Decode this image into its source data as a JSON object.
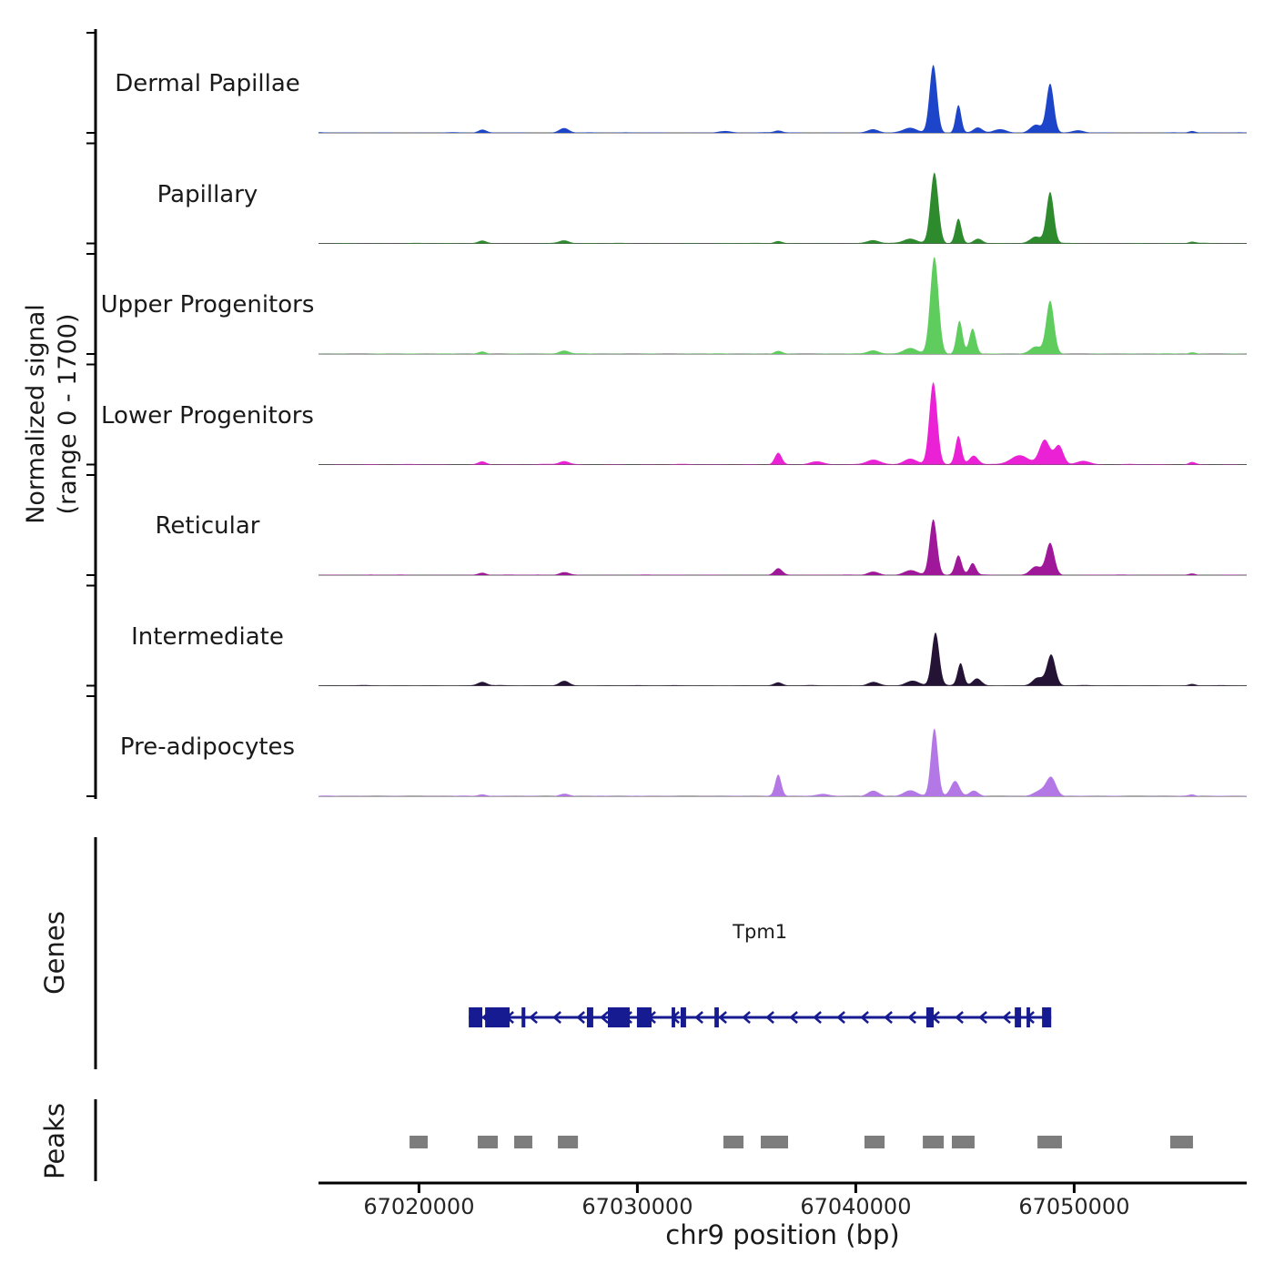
{
  "chart_data": {
    "type": "area",
    "title": "",
    "xlabel": "chr9 position (bp)",
    "ylabel": "Normalized signal (range 0 - 1700)",
    "ylabel_lines": [
      "Normalized signal",
      "(range 0 - 1700)"
    ],
    "signal_range": [
      0,
      1700
    ],
    "x_domain": [
      67015400,
      67057900
    ],
    "x_ticks": [
      67020000,
      67030000,
      67040000,
      67050000
    ],
    "x_tick_labels": [
      "67020000",
      "67030000",
      "67040000",
      "67050000"
    ],
    "grid": false,
    "tracks": [
      {
        "label": "Dermal Papillae",
        "color": "#1c45c9",
        "peaks": [
          [
            67022900,
            180,
            50
          ],
          [
            67026650,
            220,
            80
          ],
          [
            67034000,
            300,
            25
          ],
          [
            67036450,
            180,
            35
          ],
          [
            67040800,
            250,
            60
          ],
          [
            67042500,
            300,
            80
          ],
          [
            67043550,
            170,
            1150
          ],
          [
            67044700,
            130,
            470
          ],
          [
            67045600,
            200,
            90
          ],
          [
            67046600,
            300,
            60
          ],
          [
            67048250,
            250,
            130
          ],
          [
            67048900,
            170,
            830
          ],
          [
            67050200,
            250,
            40
          ],
          [
            67055400,
            150,
            30
          ]
        ]
      },
      {
        "label": "Papillary",
        "color": "#2d8a2d",
        "peaks": [
          [
            67022900,
            180,
            40
          ],
          [
            67026650,
            220,
            50
          ],
          [
            67036450,
            180,
            40
          ],
          [
            67040800,
            250,
            50
          ],
          [
            67042500,
            300,
            80
          ],
          [
            67043600,
            180,
            1200
          ],
          [
            67044700,
            140,
            420
          ],
          [
            67045600,
            200,
            80
          ],
          [
            67048250,
            250,
            110
          ],
          [
            67048900,
            170,
            870
          ],
          [
            67055400,
            150,
            25
          ]
        ]
      },
      {
        "label": "Upper Progenitors",
        "color": "#5ecd5e",
        "peaks": [
          [
            67022900,
            180,
            40
          ],
          [
            67026650,
            220,
            55
          ],
          [
            67036450,
            180,
            50
          ],
          [
            67040800,
            250,
            60
          ],
          [
            67042500,
            300,
            100
          ],
          [
            67043600,
            190,
            1650
          ],
          [
            67044750,
            140,
            560
          ],
          [
            67045350,
            150,
            430
          ],
          [
            67048250,
            250,
            120
          ],
          [
            67048900,
            180,
            900
          ],
          [
            67055400,
            150,
            25
          ]
        ]
      },
      {
        "label": "Lower Progenitors",
        "color": "#ea21d5",
        "peaks": [
          [
            67022900,
            180,
            50
          ],
          [
            67026650,
            220,
            55
          ],
          [
            67036450,
            160,
            200
          ],
          [
            67038200,
            300,
            45
          ],
          [
            67040800,
            300,
            80
          ],
          [
            67042500,
            300,
            100
          ],
          [
            67043550,
            180,
            1400
          ],
          [
            67044700,
            140,
            480
          ],
          [
            67045400,
            200,
            150
          ],
          [
            67047500,
            400,
            150
          ],
          [
            67048650,
            240,
            420
          ],
          [
            67049300,
            200,
            320
          ],
          [
            67050400,
            300,
            60
          ],
          [
            67055400,
            150,
            40
          ]
        ]
      },
      {
        "label": "Reticular",
        "color": "#a0189a",
        "peaks": [
          [
            67022900,
            180,
            40
          ],
          [
            67026650,
            220,
            50
          ],
          [
            67036450,
            180,
            110
          ],
          [
            67040800,
            250,
            60
          ],
          [
            67042500,
            300,
            80
          ],
          [
            67043550,
            170,
            950
          ],
          [
            67044700,
            150,
            330
          ],
          [
            67045350,
            150,
            200
          ],
          [
            67048250,
            250,
            150
          ],
          [
            67048900,
            190,
            540
          ],
          [
            67055400,
            150,
            25
          ]
        ]
      },
      {
        "label": "Intermediate",
        "color": "#251336",
        "peaks": [
          [
            67022900,
            200,
            60
          ],
          [
            67026650,
            220,
            80
          ],
          [
            67036450,
            180,
            50
          ],
          [
            67040800,
            250,
            60
          ],
          [
            67042600,
            300,
            80
          ],
          [
            67043650,
            170,
            900
          ],
          [
            67044800,
            140,
            380
          ],
          [
            67045550,
            200,
            120
          ],
          [
            67048350,
            250,
            140
          ],
          [
            67048950,
            190,
            520
          ],
          [
            67055400,
            150,
            25
          ]
        ]
      },
      {
        "label": "Pre-adipocytes",
        "color": "#b478e6",
        "peaks": [
          [
            67022900,
            180,
            30
          ],
          [
            67026650,
            220,
            40
          ],
          [
            67036450,
            140,
            360
          ],
          [
            67038500,
            300,
            40
          ],
          [
            67040800,
            250,
            90
          ],
          [
            67042500,
            300,
            90
          ],
          [
            67043600,
            160,
            1150
          ],
          [
            67044550,
            200,
            260
          ],
          [
            67045400,
            200,
            90
          ],
          [
            67048450,
            300,
            90
          ],
          [
            67048950,
            220,
            300
          ],
          [
            67055400,
            150,
            25
          ]
        ]
      }
    ],
    "gene_track": {
      "label": "Genes",
      "color": "#161b92",
      "gene": {
        "name": "Tpm1",
        "strand": "-",
        "start": 67022280,
        "end": 67048950,
        "exons": [
          [
            67022280,
            67022900
          ],
          [
            67023030,
            67024150
          ],
          [
            67024700,
            67024870
          ],
          [
            67027690,
            67027980
          ],
          [
            67028650,
            67029650
          ],
          [
            67029980,
            67030650
          ],
          [
            67031570,
            67031730
          ],
          [
            67031980,
            67032230
          ],
          [
            67033530,
            67033730
          ],
          [
            67043230,
            67043570
          ],
          [
            67047280,
            67047570
          ],
          [
            67047820,
            67047980
          ],
          [
            67048530,
            67048950
          ]
        ]
      }
    },
    "peaks_track": {
      "label": "Peaks",
      "color": "#7d7d7d",
      "intervals": [
        [
          67019570,
          67020400
        ],
        [
          67022690,
          67023610
        ],
        [
          67024360,
          67025190
        ],
        [
          67026360,
          67027280
        ],
        [
          67033940,
          67034860
        ],
        [
          67035650,
          67036900
        ],
        [
          67040400,
          67041320
        ],
        [
          67043070,
          67044030
        ],
        [
          67044400,
          67045440
        ],
        [
          67048320,
          67049440
        ],
        [
          67054400,
          67055440
        ]
      ]
    }
  }
}
